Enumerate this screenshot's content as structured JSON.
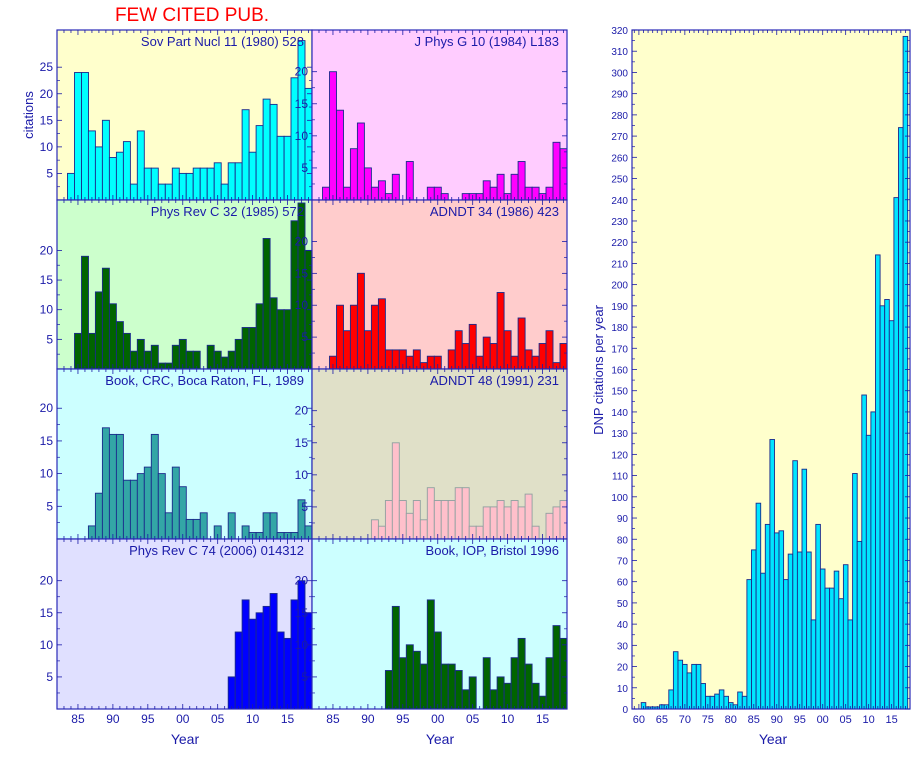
{
  "chart_data": [
    {
      "type": "bar",
      "title": "FEW CITED PUB.",
      "ylabel": "citations",
      "xlabel": "Year",
      "xlim": [
        1982,
        2018.5
      ],
      "xtick_values": [
        1985,
        1990,
        1995,
        2000,
        2005,
        2010,
        2015
      ],
      "xtick_labels": [
        "85",
        "90",
        "95",
        "00",
        "05",
        "10",
        "15"
      ],
      "panels": [
        {
          "label": "Sov Part Nucl 11 (1980) 528",
          "bar_color": "#00ffff",
          "bg_color": "#ffffcc",
          "start_year": 1984,
          "ylim": [
            0,
            32
          ],
          "ytick_values": [
            5,
            10,
            15,
            20,
            25
          ],
          "ytick_labels": [
            "5",
            "10",
            "15",
            "20",
            "25"
          ],
          "values": [
            5,
            24,
            24,
            13,
            10,
            15,
            8,
            9,
            11,
            3,
            13,
            6,
            6,
            3,
            3,
            6,
            5,
            5,
            6,
            6,
            6,
            7,
            3,
            7,
            7,
            17,
            9,
            14,
            19,
            18,
            12,
            12,
            23,
            30,
            21
          ]
        },
        {
          "label": "J Phys G 10 (1984) L183",
          "bar_color": "#ff00ff",
          "bg_color": "#ffccff",
          "start_year": 1984,
          "ylim": [
            0,
            26.5
          ],
          "ytick_values": [
            5,
            10,
            15,
            20
          ],
          "ytick_labels": [
            "5",
            "10",
            "15",
            "20"
          ],
          "values": [
            2,
            20,
            14,
            2,
            8,
            12,
            5,
            2,
            3,
            1,
            4,
            0,
            6,
            0,
            0,
            2,
            2,
            1,
            0,
            0,
            1,
            1,
            1,
            3,
            2,
            4,
            1,
            4,
            6,
            2,
            2,
            1,
            2,
            9,
            8
          ]
        },
        {
          "label": "Phys Rev C 32 (1985) 572",
          "bar_color": "#006400",
          "bg_color": "#ccffcc",
          "start_year": 1985,
          "ylim": [
            0,
            28.5
          ],
          "ytick_values": [
            5,
            10,
            15,
            20
          ],
          "ytick_labels": [
            "5",
            "10",
            "15",
            "20"
          ],
          "values": [
            6,
            19,
            6,
            13,
            17,
            11,
            8,
            6,
            3,
            5,
            3,
            4,
            1,
            1,
            4,
            5,
            3,
            3,
            0,
            4,
            3,
            2,
            3,
            5,
            7,
            7,
            11,
            22,
            12,
            10,
            10,
            25,
            28,
            20
          ]
        },
        {
          "label": "ADNDT 34 (1986) 423",
          "bar_color": "#ff0000",
          "bg_color": "#ffcccc",
          "start_year": 1985,
          "ylim": [
            0,
            26.5
          ],
          "ytick_values": [
            5,
            10,
            15,
            20
          ],
          "ytick_labels": [
            "5",
            "10",
            "15",
            "20"
          ],
          "values": [
            2,
            10,
            6,
            10,
            15,
            6,
            10,
            11,
            3,
            3,
            3,
            2,
            3,
            1,
            2,
            2,
            0,
            3,
            6,
            4,
            7,
            2,
            5,
            4,
            12,
            6,
            2,
            8,
            3,
            2,
            4,
            6,
            1,
            4
          ]
        },
        {
          "label": "Book, CRC, Boca Raton, FL, 1989",
          "bar_color": "#33a6a6",
          "bg_color": "#ccffff",
          "start_year": 1987,
          "ylim": [
            0,
            26
          ],
          "ytick_values": [
            5,
            10,
            15,
            20
          ],
          "ytick_labels": [
            "5",
            "10",
            "15",
            "20"
          ],
          "values": [
            2,
            7,
            17,
            16,
            16,
            9,
            9,
            10,
            11,
            16,
            10,
            4,
            11,
            8,
            3,
            3,
            4,
            0,
            2,
            0,
            4,
            0,
            2,
            1,
            1,
            4,
            4,
            1,
            1,
            1,
            6,
            2
          ]
        },
        {
          "label": "ADNDT 48 (1991) 231",
          "bar_color": "#ffc0cb",
          "bg_color": "#e0e0c8",
          "start_year": 1991,
          "ylim": [
            0,
            26.5
          ],
          "ytick_values": [
            5,
            10,
            15,
            20
          ],
          "ytick_labels": [
            "5",
            "10",
            "15",
            "20"
          ],
          "values": [
            3,
            2,
            6,
            15,
            6,
            4,
            6,
            3,
            8,
            6,
            6,
            6,
            8,
            8,
            2,
            2,
            5,
            5,
            6,
            5,
            6,
            5,
            7,
            2,
            0,
            4,
            5,
            6
          ]
        },
        {
          "label": "Phys Rev C 74 (2006) 014312",
          "bar_color": "#0000ff",
          "bg_color": "#e0e0ff",
          "start_year": 2007,
          "ylim": [
            0,
            26.5
          ],
          "ytick_values": [
            5,
            10,
            15,
            20
          ],
          "ytick_labels": [
            "5",
            "10",
            "15",
            "20"
          ],
          "values": [
            5,
            12,
            17,
            14,
            15,
            16,
            18,
            12,
            11,
            17,
            20,
            15
          ]
        },
        {
          "label": "Book, IOP, Bristol 1996",
          "bar_color": "#006400",
          "bg_color": "#ccffff",
          "start_year": 1993,
          "ylim": [
            0,
            26.5
          ],
          "ytick_values": [
            5,
            10,
            15,
            20
          ],
          "ytick_labels": [
            "5",
            "10",
            "15",
            "20"
          ],
          "values": [
            6,
            16,
            8,
            10,
            9,
            7,
            17,
            12,
            7,
            7,
            6,
            3,
            5,
            0,
            8,
            3,
            5,
            4,
            8,
            11,
            7,
            4,
            2,
            8,
            13,
            11
          ]
        }
      ]
    },
    {
      "type": "bar",
      "title": "",
      "ylabel": "DNP citations per year",
      "xlabel": "Year",
      "bar_color": "#00e5ff",
      "bg_color": "#ffffcc",
      "xlim": [
        1958.5,
        2019
      ],
      "ylim": [
        0,
        320
      ],
      "xtick_values": [
        1960,
        1965,
        1970,
        1975,
        1980,
        1985,
        1990,
        1995,
        2000,
        2005,
        2010,
        2015
      ],
      "xtick_labels": [
        "60",
        "65",
        "70",
        "75",
        "80",
        "85",
        "90",
        "95",
        "00",
        "05",
        "10",
        "15"
      ],
      "ytick_values": [
        0,
        10,
        20,
        30,
        40,
        50,
        60,
        70,
        80,
        90,
        100,
        110,
        120,
        130,
        140,
        150,
        160,
        170,
        180,
        190,
        200,
        210,
        220,
        230,
        240,
        250,
        260,
        270,
        280,
        290,
        300,
        310,
        320
      ],
      "ytick_labels": [
        "0",
        "10",
        "20",
        "30",
        "40",
        "50",
        "60",
        "70",
        "80",
        "90",
        "100",
        "110",
        "120",
        "130",
        "140",
        "150",
        "160",
        "170",
        "180",
        "190",
        "200",
        "210",
        "220",
        "230",
        "240",
        "250",
        "260",
        "270",
        "280",
        "290",
        "300",
        "310",
        "320"
      ],
      "start_year": 1961,
      "values": [
        3,
        1,
        1,
        1,
        2,
        2,
        9,
        27,
        23,
        21,
        17,
        21,
        21,
        12,
        6,
        6,
        7,
        9,
        6,
        3,
        2,
        8,
        6,
        61,
        75,
        97,
        64,
        87,
        127,
        83,
        84,
        61,
        73,
        117,
        74,
        113,
        74,
        42,
        87,
        66,
        57,
        57,
        65,
        52,
        68,
        42,
        111,
        79,
        148,
        129,
        140,
        214,
        190,
        193,
        183,
        241,
        274,
        317
      ]
    }
  ],
  "colors": {
    "axis": "#1a1aa8",
    "title": "#ff0000",
    "bar_edge": "#1a2a8c"
  }
}
